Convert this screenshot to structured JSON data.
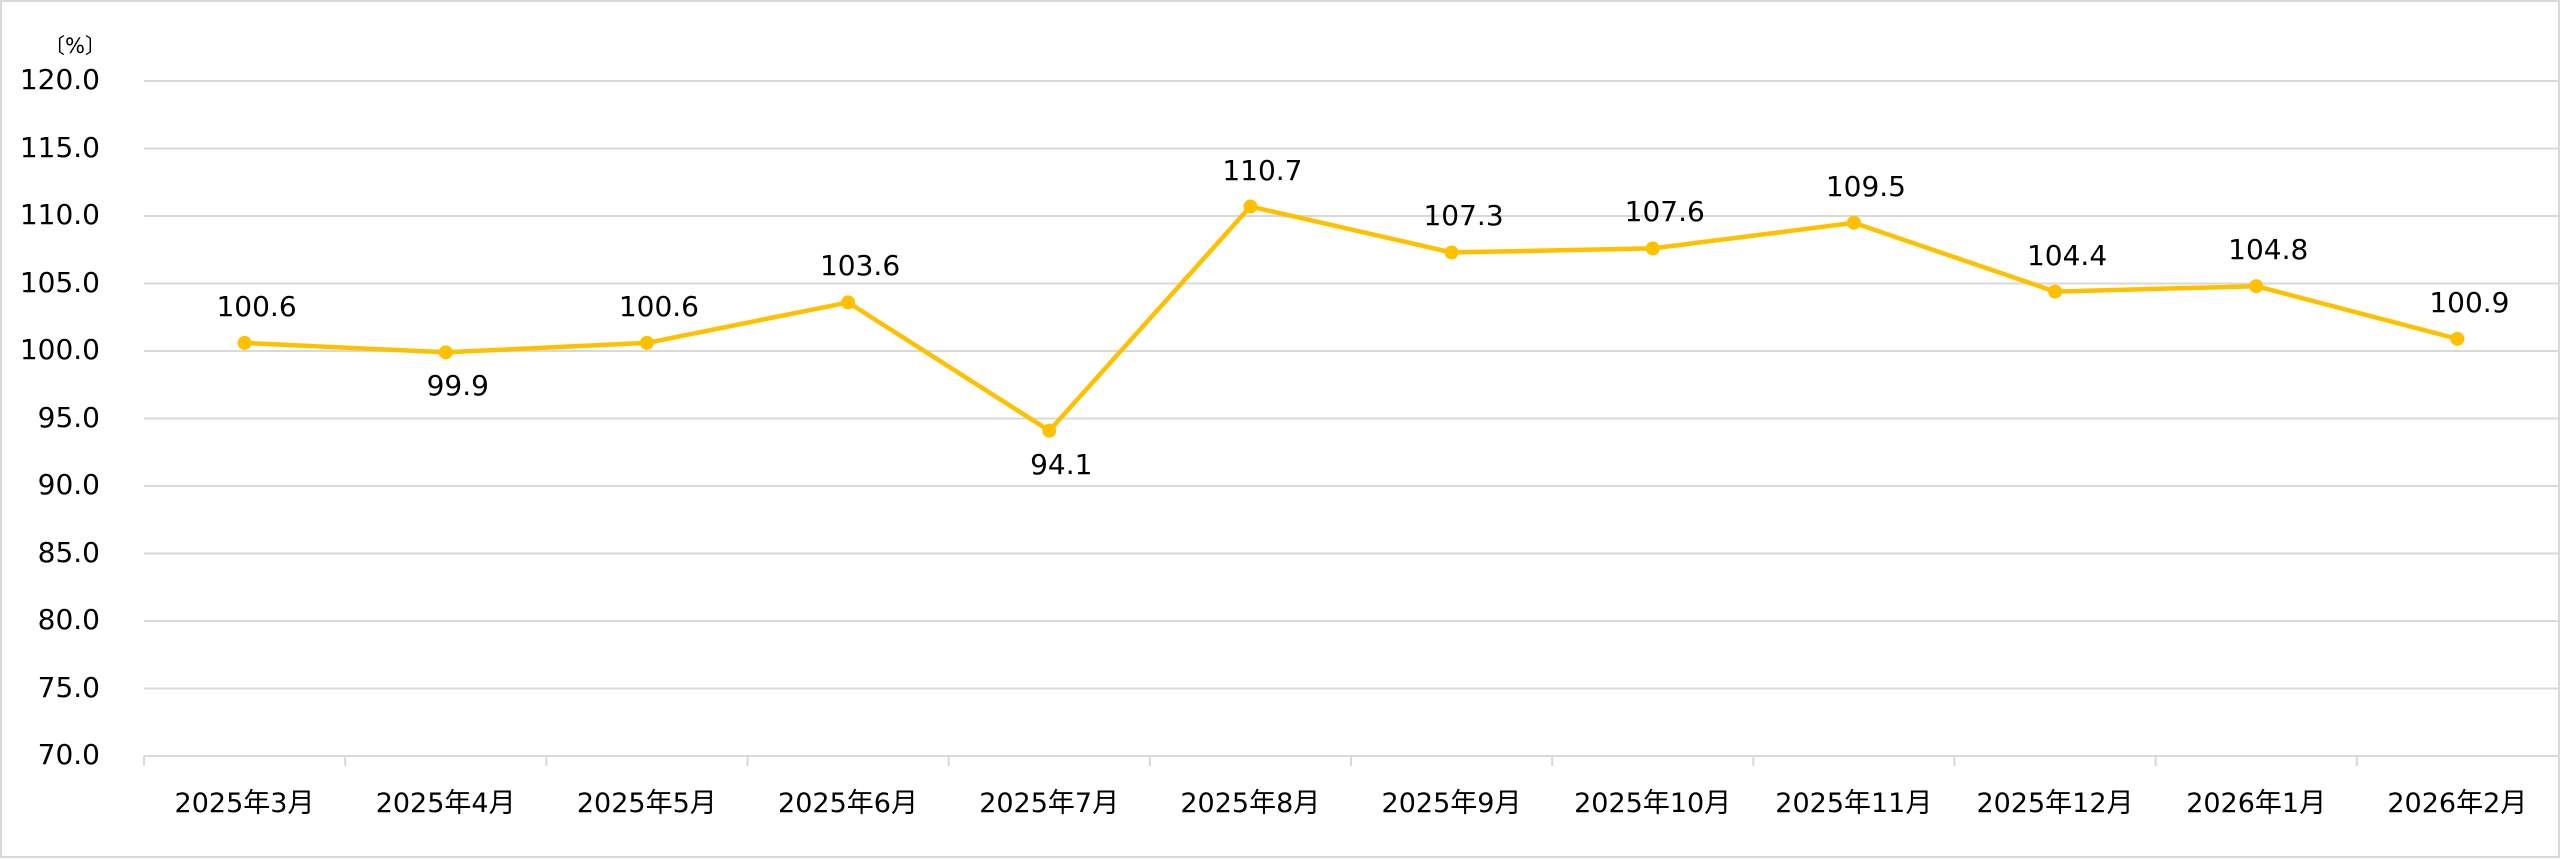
{
  "chart_data": {
    "type": "line",
    "title": "",
    "xlabel": "",
    "ylabel": "",
    "unit_label": "〔%〕",
    "categories": [
      "2025年3月",
      "2025年4月",
      "2025年5月",
      "2025年6月",
      "2025年7月",
      "2025年8月",
      "2025年9月",
      "2025年10月",
      "2025年11月",
      "2025年12月",
      "2026年1月",
      "2026年2月"
    ],
    "series": [
      {
        "name": "",
        "color": "#FFC000",
        "values": [
          100.6,
          99.9,
          100.6,
          103.6,
          94.1,
          110.7,
          107.3,
          107.6,
          109.5,
          104.4,
          104.8,
          100.9
        ],
        "data_labels": [
          "100.6",
          "99.9",
          "100.6",
          "103.6",
          "94.1",
          "110.7",
          "107.3",
          "107.6",
          "109.5",
          "104.4",
          "104.8",
          "100.9"
        ],
        "label_positions": [
          "above",
          "below",
          "above",
          "above",
          "below",
          "above",
          "above",
          "above",
          "above",
          "above",
          "above",
          "above"
        ]
      }
    ],
    "ylim": [
      70.0,
      120.0
    ],
    "y_ticks": [
      "120.0",
      "115.0",
      "110.0",
      "105.0",
      "100.0",
      "95.0",
      "90.0",
      "85.0",
      "80.0",
      "75.0",
      "70.0"
    ],
    "y_tick_values": [
      120,
      115,
      110,
      105,
      100,
      95,
      90,
      85,
      80,
      75,
      70
    ],
    "grid": true,
    "legend": "none",
    "colors": {
      "line": "#FFC000",
      "grid": "#D9D9D9",
      "axis": "#D9D9D9",
      "text": "#000000"
    }
  }
}
